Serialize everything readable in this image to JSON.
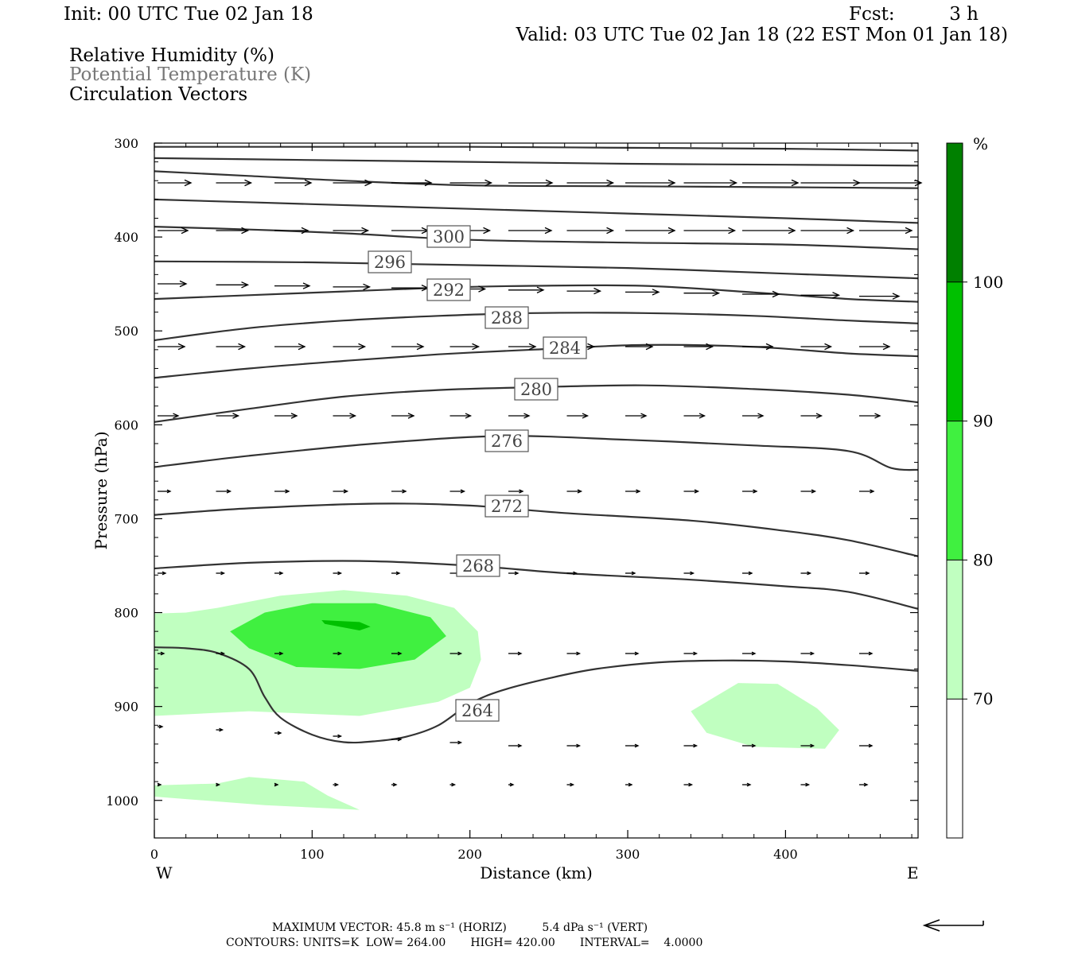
{
  "header": {
    "init": "Init: 00 UTC Tue 02 Jan 18",
    "fcst_label": "Fcst:",
    "fcst_value": "3 h",
    "valid": "Valid: 03 UTC Tue 02 Jan 18 (22 EST Mon 01 Jan 18)"
  },
  "legend_lines": [
    {
      "text": "Relative Humidity (%)",
      "color": "#000000"
    },
    {
      "text": "Potential Temperature (K)",
      "color": "#777777"
    },
    {
      "text": "Circulation Vectors",
      "color": "#000000"
    }
  ],
  "chart_data": {
    "type": "cross-section",
    "xlabel": "Distance (km)",
    "ylabel": "Pressure (hPa)",
    "xlim": [
      0,
      484
    ],
    "ylim": [
      1040,
      300
    ],
    "x_ticks": [
      "0",
      "100",
      "200",
      "300",
      "400"
    ],
    "y_ticks": [
      "300",
      "400",
      "500",
      "600",
      "700",
      "800",
      "900",
      "1000"
    ],
    "x_end_labels": {
      "left": "W",
      "right": "E"
    },
    "theta_contours": [
      {
        "label": "264",
        "points": [
          [
            0,
            837
          ],
          [
            20,
            838
          ],
          [
            40,
            843
          ],
          [
            60,
            860
          ],
          [
            70,
            890
          ],
          [
            80,
            912
          ],
          [
            100,
            930
          ],
          [
            120,
            938
          ],
          [
            140,
            937
          ],
          [
            160,
            932
          ],
          [
            180,
            920
          ],
          [
            200,
            897
          ],
          [
            220,
            883
          ],
          [
            250,
            870
          ],
          [
            280,
            860
          ],
          [
            320,
            853
          ],
          [
            360,
            851
          ],
          [
            400,
            852
          ],
          [
            440,
            856
          ],
          [
            484,
            862
          ]
        ]
      },
      {
        "label": "268",
        "points": [
          [
            0,
            753
          ],
          [
            60,
            747
          ],
          [
            130,
            745
          ],
          [
            200,
            750
          ],
          [
            260,
            758
          ],
          [
            340,
            765
          ],
          [
            400,
            772
          ],
          [
            440,
            778
          ],
          [
            484,
            796
          ]
        ]
      },
      {
        "label": "272",
        "points": [
          [
            0,
            696
          ],
          [
            60,
            689
          ],
          [
            140,
            684
          ],
          [
            200,
            686
          ],
          [
            260,
            694
          ],
          [
            340,
            702
          ],
          [
            400,
            713
          ],
          [
            440,
            723
          ],
          [
            484,
            740
          ]
        ]
      },
      {
        "label": "276",
        "points": [
          [
            0,
            645
          ],
          [
            60,
            633
          ],
          [
            140,
            620
          ],
          [
            220,
            612
          ],
          [
            300,
            616
          ],
          [
            380,
            622
          ],
          [
            440,
            628
          ],
          [
            467,
            646
          ],
          [
            484,
            648
          ]
        ]
      },
      {
        "label": "280",
        "points": [
          [
            0,
            597
          ],
          [
            60,
            583
          ],
          [
            120,
            570
          ],
          [
            180,
            563
          ],
          [
            240,
            560
          ],
          [
            310,
            558
          ],
          [
            380,
            562
          ],
          [
            440,
            568
          ],
          [
            484,
            576
          ]
        ]
      },
      {
        "label": "284",
        "points": [
          [
            0,
            550
          ],
          [
            60,
            540
          ],
          [
            120,
            532
          ],
          [
            180,
            525
          ],
          [
            240,
            520
          ],
          [
            310,
            515
          ],
          [
            380,
            517
          ],
          [
            440,
            524
          ],
          [
            484,
            527
          ]
        ]
      },
      {
        "label": "288",
        "points": [
          [
            0,
            510
          ],
          [
            60,
            497
          ],
          [
            120,
            489
          ],
          [
            180,
            484
          ],
          [
            240,
            481
          ],
          [
            310,
            481
          ],
          [
            380,
            484
          ],
          [
            440,
            489
          ],
          [
            484,
            492
          ]
        ]
      },
      {
        "label": "292",
        "points": [
          [
            0,
            466
          ],
          [
            60,
            462
          ],
          [
            120,
            458
          ],
          [
            180,
            454
          ],
          [
            240,
            452
          ],
          [
            310,
            452
          ],
          [
            380,
            459
          ],
          [
            440,
            466
          ],
          [
            484,
            469
          ]
        ]
      },
      {
        "label": "296",
        "points": [
          [
            0,
            426
          ],
          [
            100,
            427
          ],
          [
            200,
            430
          ],
          [
            300,
            433
          ],
          [
            400,
            439
          ],
          [
            484,
            444
          ]
        ]
      },
      {
        "label": "300",
        "points": [
          [
            0,
            389
          ],
          [
            60,
            392
          ],
          [
            120,
            396
          ],
          [
            200,
            403
          ],
          [
            300,
            406
          ],
          [
            400,
            408
          ],
          [
            484,
            413
          ]
        ]
      },
      {
        "label": "",
        "points": [
          [
            0,
            360
          ],
          [
            100,
            365
          ],
          [
            200,
            370
          ],
          [
            300,
            375
          ],
          [
            400,
            380
          ],
          [
            484,
            385
          ]
        ]
      },
      {
        "label": "",
        "points": [
          [
            0,
            330
          ],
          [
            60,
            335
          ],
          [
            120,
            340
          ],
          [
            200,
            345
          ],
          [
            300,
            346
          ],
          [
            400,
            347
          ],
          [
            484,
            348
          ]
        ]
      },
      {
        "label": "",
        "points": [
          [
            0,
            316
          ],
          [
            100,
            318
          ],
          [
            200,
            320
          ],
          [
            300,
            322
          ],
          [
            400,
            323
          ],
          [
            484,
            324
          ]
        ]
      },
      {
        "label": "",
        "points": [
          [
            0,
            304
          ],
          [
            100,
            304
          ],
          [
            200,
            304
          ],
          [
            300,
            305
          ],
          [
            400,
            306
          ],
          [
            484,
            308
          ]
        ]
      }
    ],
    "rh_fill_levels": [
      {
        "level": 80,
        "color": "#c0ffc0",
        "region": "lower-left",
        "points": [
          [
            0,
            801
          ],
          [
            20,
            800
          ],
          [
            40,
            795
          ],
          [
            80,
            782
          ],
          [
            120,
            776
          ],
          [
            160,
            782
          ],
          [
            190,
            795
          ],
          [
            205,
            820
          ],
          [
            207,
            850
          ],
          [
            200,
            880
          ],
          [
            180,
            895
          ],
          [
            130,
            910
          ],
          [
            60,
            905
          ],
          [
            0,
            910
          ]
        ]
      },
      {
        "level": 80,
        "color": "#c0ffc0",
        "region": "lower-right",
        "points": [
          [
            340,
            905
          ],
          [
            370,
            875
          ],
          [
            395,
            876
          ],
          [
            420,
            902
          ],
          [
            434,
            925
          ],
          [
            425,
            945
          ],
          [
            380,
            943
          ],
          [
            350,
            928
          ]
        ]
      },
      {
        "level": 80,
        "color": "#c0ffc0",
        "region": "surface",
        "points": [
          [
            0,
            984
          ],
          [
            40,
            982
          ],
          [
            60,
            975
          ],
          [
            95,
            980
          ],
          [
            110,
            995
          ],
          [
            130,
            1010
          ],
          [
            70,
            1005
          ],
          [
            0,
            996
          ]
        ]
      },
      {
        "level": 90,
        "color": "#40f040",
        "region": "core",
        "points": [
          [
            48,
            820
          ],
          [
            70,
            800
          ],
          [
            100,
            790
          ],
          [
            140,
            790
          ],
          [
            175,
            805
          ],
          [
            185,
            825
          ],
          [
            165,
            850
          ],
          [
            130,
            860
          ],
          [
            90,
            858
          ],
          [
            60,
            838
          ]
        ]
      },
      {
        "level": 100,
        "color": "#00c000",
        "region": "max",
        "points": [
          [
            106,
            808
          ],
          [
            130,
            810
          ],
          [
            137,
            815
          ],
          [
            130,
            819
          ],
          [
            108,
            812
          ]
        ]
      }
    ],
    "colorbar": {
      "unit": "%",
      "levels": [
        "70",
        "80",
        "90",
        "100"
      ],
      "colors": [
        "#ffffff",
        "#c0ffc0",
        "#40f040",
        "#00c000",
        "#008000"
      ]
    }
  },
  "footer": {
    "max_vector_line": "MAXIMUM VECTOR: 45.8 m s⁻¹ (HORIZ)          5.4 dPa s⁻¹ (VERT)",
    "contours_line": "CONTOURS: UNITS=K  LOW= 264.00       HIGH= 420.00       INTERVAL=    4.0000"
  }
}
